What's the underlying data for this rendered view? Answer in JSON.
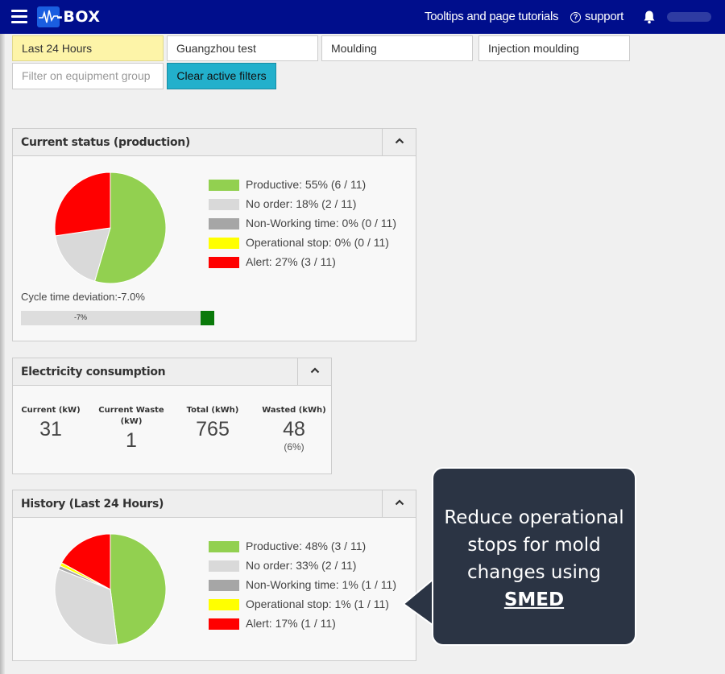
{
  "header": {
    "logo_text": "-BOX",
    "tutorials_link": "Tooltips and page tutorials",
    "support_link": "support",
    "support_icon": "question-circle-icon",
    "notification_icon": "bell-icon",
    "menu_icon": "hamburger-menu-icon"
  },
  "filters": {
    "time_range": "Last 24 Hours",
    "site": "Guangzhou test",
    "process": "Moulding",
    "subprocess": "Injection moulding",
    "equipment_group_placeholder": "Filter on equipment group",
    "clear_button": "Clear active filters"
  },
  "current_status": {
    "title": "Current status (production)",
    "legend": [
      {
        "label": "Productive: 55% (6 / 11)",
        "color": "#92d050",
        "value": 6
      },
      {
        "label": "No order: 18% (2 / 11)",
        "color": "#d9d9d9",
        "value": 2
      },
      {
        "label": "Non-Working time: 0% (0 / 11)",
        "color": "#a6a6a6",
        "value": 0
      },
      {
        "label": "Operational stop: 0% (0 / 11)",
        "color": "#ffff00",
        "value": 0
      },
      {
        "label": "Alert: 27% (3 / 11)",
        "color": "#ff0000",
        "value": 3
      }
    ],
    "cycle_label": "Cycle time deviation:-7.0%",
    "cycle_bar_text": "-7%",
    "cycle_marker_color": "#0a7a0a"
  },
  "electricity": {
    "title": "Electricity consumption",
    "columns": [
      {
        "label": "Current (kW)",
        "value": "31",
        "sub": ""
      },
      {
        "label": "Current Waste (kW)",
        "value": "1",
        "sub": ""
      },
      {
        "label": "Total (kWh)",
        "value": "765",
        "sub": ""
      },
      {
        "label": "Wasted (kWh)",
        "value": "48",
        "sub": "(6%)"
      }
    ]
  },
  "history": {
    "title": "History (Last 24 Hours)",
    "legend": [
      {
        "label": "Productive: 48% (3 / 11)",
        "color": "#92d050",
        "value": 48
      },
      {
        "label": "No order: 33% (2 / 11)",
        "color": "#d9d9d9",
        "value": 33
      },
      {
        "label": "Non-Working time: 1% (1 / 11)",
        "color": "#a6a6a6",
        "value": 1
      },
      {
        "label": "Operational stop: 1% (1 / 11)",
        "color": "#ffff00",
        "value": 1
      },
      {
        "label": "Alert: 17% (1 / 11)",
        "color": "#ff0000",
        "value": 17
      }
    ]
  },
  "callout": {
    "text": "Reduce operational stops for mold changes using",
    "link": "SMED"
  }
}
